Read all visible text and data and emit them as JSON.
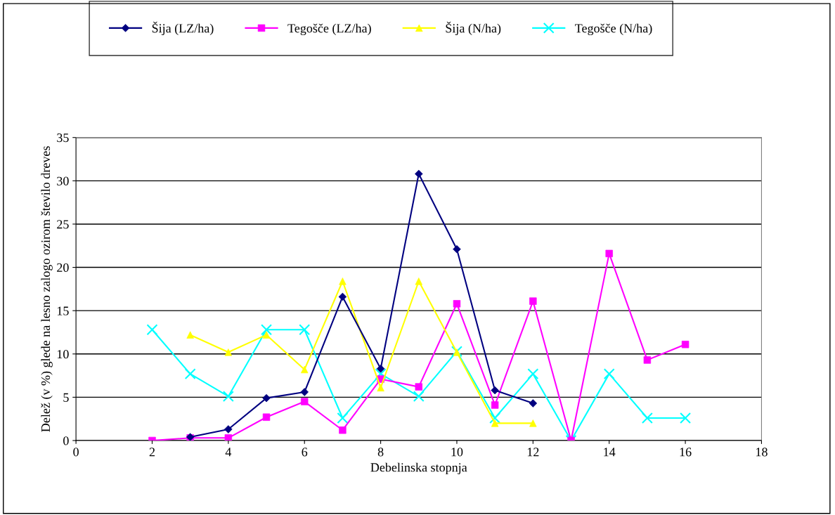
{
  "chart_data": {
    "type": "line",
    "xlabel": "Debelinska stopnja",
    "ylabel": "Delež (v %) glede na lesno zalogo ozirom število dreves",
    "xlim": [
      0,
      18
    ],
    "xticks": [
      0,
      2,
      4,
      6,
      8,
      10,
      12,
      14,
      16,
      18
    ],
    "ylim": [
      0,
      35
    ],
    "yticks": [
      0,
      5,
      10,
      15,
      20,
      25,
      30,
      35
    ],
    "grid": "y",
    "legend": "top",
    "series": [
      {
        "name": "Šija (LZ/ha)",
        "color": "#000080",
        "marker": "diamond",
        "x": [
          3,
          4,
          5,
          6,
          7,
          8,
          9,
          10,
          11,
          12
        ],
        "values": [
          0.4,
          1.3,
          4.9,
          5.6,
          16.6,
          8.3,
          30.8,
          22.1,
          5.8,
          4.3
        ]
      },
      {
        "name": "Tegošče (LZ/ha)",
        "color": "#ff00ff",
        "marker": "square",
        "x": [
          2,
          3,
          4,
          5,
          6,
          7,
          8,
          9,
          10,
          11,
          12,
          13,
          14,
          15,
          16
        ],
        "values": [
          0,
          0.3,
          0.3,
          2.7,
          4.5,
          1.2,
          7.1,
          6.2,
          15.8,
          4.1,
          16.1,
          0,
          21.6,
          9.3,
          11.1
        ]
      },
      {
        "name": "Šija (N/ha)",
        "color": "#ffff00",
        "marker": "triangle",
        "x": [
          3,
          4,
          5,
          6,
          7,
          8,
          9,
          10,
          11,
          12
        ],
        "values": [
          12.2,
          10.2,
          12.2,
          8.2,
          18.4,
          6.1,
          18.4,
          10.2,
          2.0,
          2.0
        ]
      },
      {
        "name": "Tegošče (N/ha)",
        "color": "#00ffff",
        "marker": "cross",
        "x": [
          2,
          3,
          4,
          5,
          6,
          7,
          8,
          9,
          10,
          11,
          12,
          13,
          14,
          15,
          16
        ],
        "values": [
          12.8,
          7.7,
          5.1,
          12.8,
          12.8,
          2.6,
          7.7,
          5.1,
          10.3,
          2.6,
          7.7,
          0,
          7.7,
          2.6,
          2.6
        ]
      }
    ]
  }
}
